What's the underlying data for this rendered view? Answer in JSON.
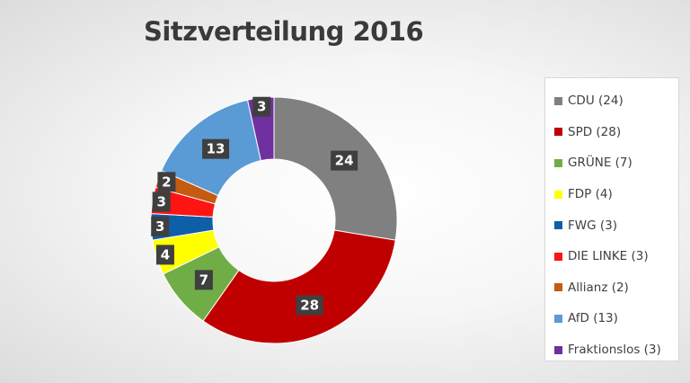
{
  "chart_data": {
    "type": "pie",
    "title": "Sitzverteilung 2016",
    "categories": [
      "CDU (24)",
      "SPD (28)",
      "GRÜNE (7)",
      "FDP (4)",
      "FWG (3)",
      "DIE LINKE (3)",
      "Allianz (2)",
      "AfD (13)",
      "Fraktionslos (3)"
    ],
    "values": [
      24,
      28,
      7,
      4,
      3,
      3,
      2,
      13,
      3
    ],
    "colors": [
      "#808080",
      "#c00000",
      "#70ad47",
      "#ffff00",
      "#0f5ea8",
      "#ff1414",
      "#c55a11",
      "#5b9bd5",
      "#7030a0"
    ],
    "data_labels": [
      "24",
      "28",
      "7",
      "4",
      "3",
      "3",
      "2",
      "13",
      "3"
    ],
    "legend_position": "right",
    "donut": true
  }
}
